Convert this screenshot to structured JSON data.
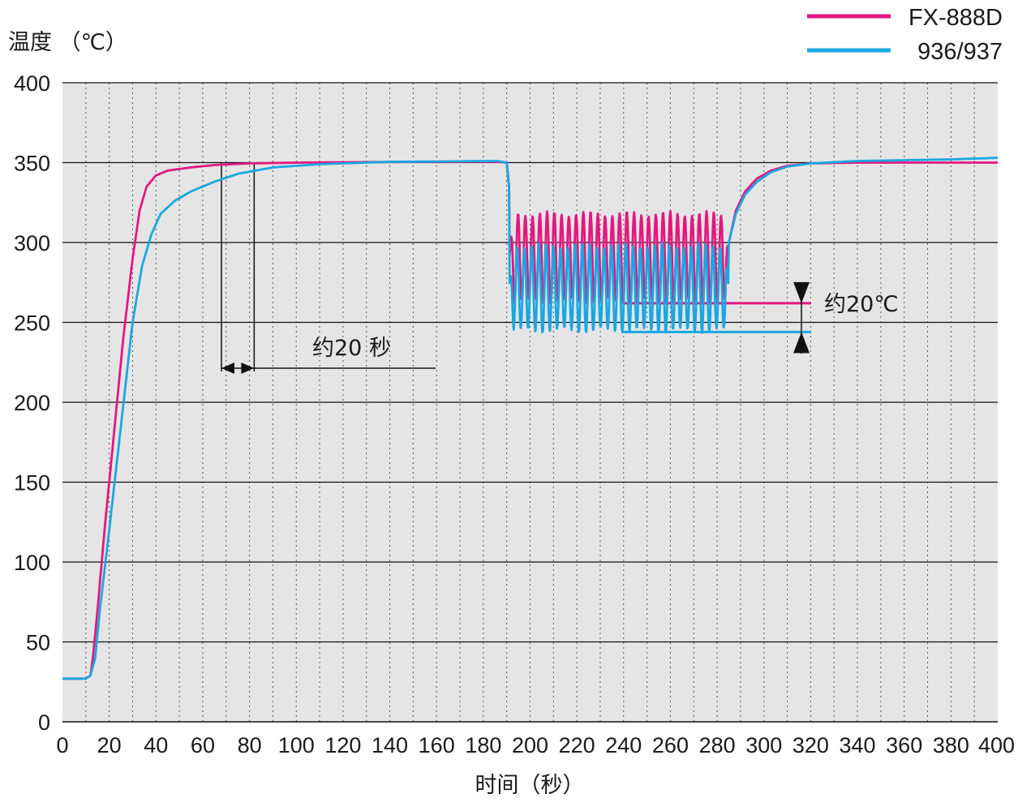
{
  "chart_data": {
    "type": "line",
    "ylabel": "温度 （℃）",
    "xlabel": "时间（秒）",
    "xlim": [
      0,
      400
    ],
    "ylim": [
      0,
      400
    ],
    "x_ticks": [
      0,
      20,
      40,
      60,
      80,
      100,
      120,
      140,
      160,
      180,
      200,
      220,
      240,
      260,
      280,
      300,
      320,
      340,
      360,
      380,
      400
    ],
    "y_ticks": [
      0,
      50,
      100,
      150,
      200,
      250,
      300,
      350,
      400
    ],
    "grid": "horizontal solid every 50, vertical dotted every 10",
    "legend_position": "top-right",
    "series": [
      {
        "name": "FX-888D",
        "color": "#e2187f",
        "points": [
          [
            0,
            27
          ],
          [
            10,
            27
          ],
          [
            12,
            29
          ],
          [
            13,
            40
          ],
          [
            15,
            70
          ],
          [
            18,
            120
          ],
          [
            22,
            180
          ],
          [
            26,
            240
          ],
          [
            30,
            290
          ],
          [
            33,
            320
          ],
          [
            36,
            335
          ],
          [
            40,
            342
          ],
          [
            45,
            345
          ],
          [
            55,
            347
          ],
          [
            65,
            348.5
          ],
          [
            80,
            349.5
          ],
          [
            100,
            350
          ],
          [
            150,
            350.5
          ],
          [
            186,
            350.5
          ],
          [
            190,
            350
          ],
          [
            191,
            335
          ],
          [
            192,
            305
          ],
          [
            284,
            305
          ],
          [
            285,
            300
          ],
          [
            288,
            320
          ],
          [
            292,
            332
          ],
          [
            297,
            340
          ],
          [
            303,
            345
          ],
          [
            310,
            348
          ],
          [
            320,
            349.5
          ],
          [
            340,
            350
          ],
          [
            400,
            350
          ]
        ],
        "oscillation": {
          "x_start": 191,
          "x_end": 285,
          "max": 318,
          "min": 263
        }
      },
      {
        "name": "936/937",
        "color": "#1aa7e1",
        "points": [
          [
            0,
            27
          ],
          [
            10,
            27
          ],
          [
            12,
            29
          ],
          [
            14,
            40
          ],
          [
            16,
            70
          ],
          [
            20,
            120
          ],
          [
            25,
            185
          ],
          [
            30,
            250
          ],
          [
            34,
            285
          ],
          [
            38,
            305
          ],
          [
            42,
            318
          ],
          [
            48,
            326
          ],
          [
            55,
            332
          ],
          [
            65,
            338
          ],
          [
            75,
            343
          ],
          [
            90,
            347
          ],
          [
            110,
            349
          ],
          [
            140,
            350.5
          ],
          [
            186,
            351
          ],
          [
            190,
            350
          ],
          [
            191,
            335
          ],
          [
            192,
            300
          ],
          [
            284,
            300
          ],
          [
            285,
            300
          ],
          [
            288,
            318
          ],
          [
            292,
            330
          ],
          [
            297,
            338
          ],
          [
            303,
            344
          ],
          [
            310,
            347.5
          ],
          [
            320,
            349.5
          ],
          [
            340,
            351
          ],
          [
            380,
            352
          ],
          [
            400,
            353
          ]
        ],
        "oscillation": {
          "x_start": 191,
          "x_end": 285,
          "max": 298,
          "min": 245
        }
      }
    ],
    "annotations": [
      {
        "text": "约20 秒",
        "type": "time-span",
        "x_from": 68,
        "x_to": 82,
        "y": 350
      },
      {
        "text": "约20℃",
        "type": "level-gap",
        "x_from": 240,
        "x_to": 320,
        "y_top": 262,
        "y_bottom": 244
      }
    ]
  }
}
